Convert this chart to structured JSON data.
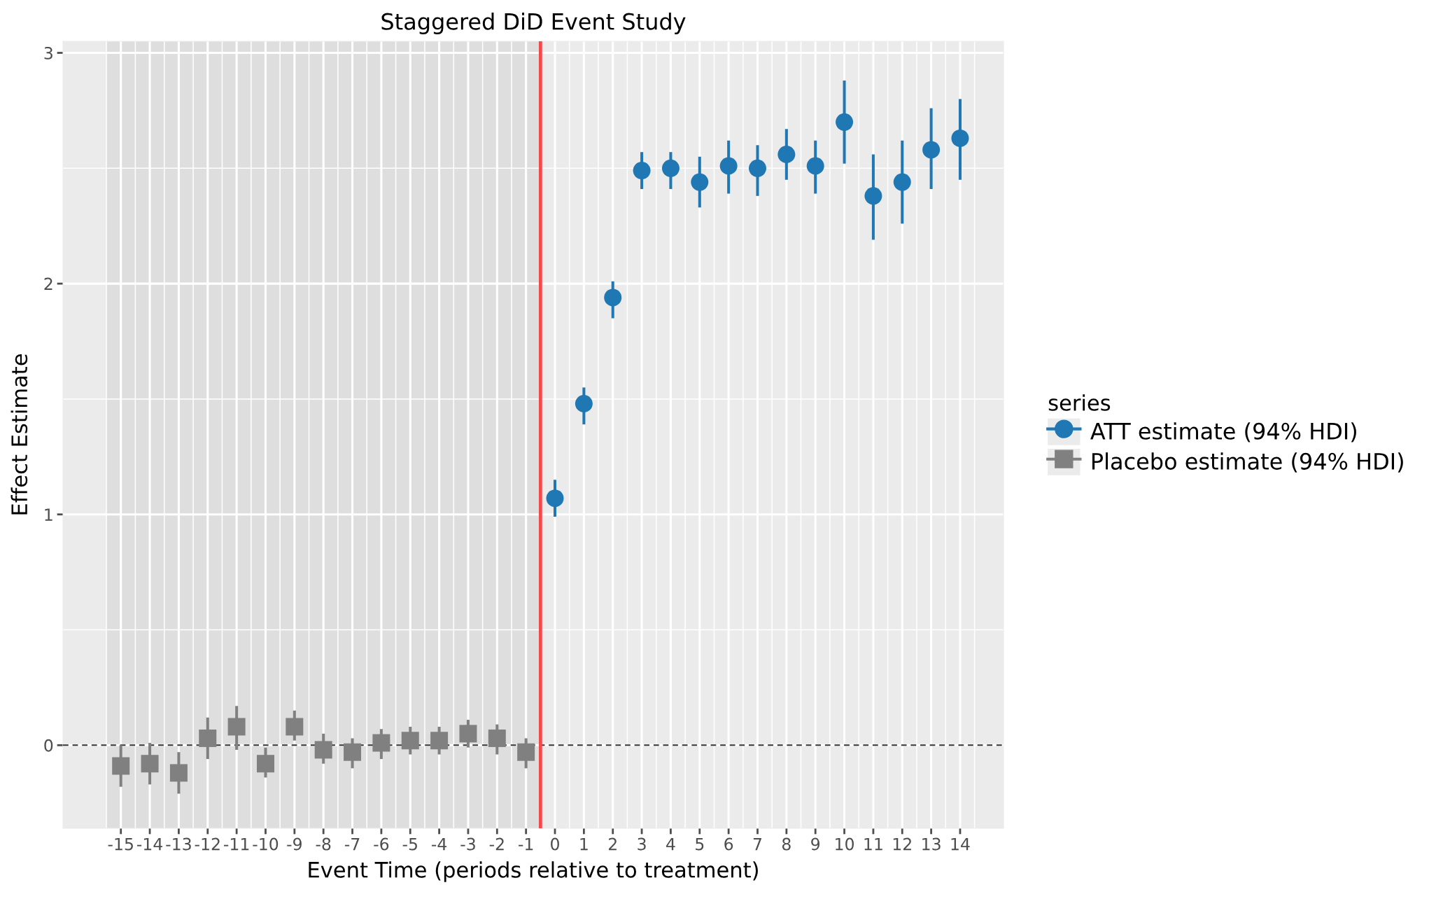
{
  "chart_data": {
    "type": "scatter",
    "title": "Staggered DiD Event Study",
    "xlabel": "Event Time (periods relative to treatment)",
    "ylabel": "Effect Estimate",
    "legend_title": "series",
    "legend": "right",
    "grid": true,
    "xlim": [
      -17,
      15.5
    ],
    "xticks": [
      -15,
      -14,
      -13,
      -12,
      -11,
      -10,
      -9,
      -8,
      -7,
      -6,
      -5,
      -4,
      -3,
      -2,
      -1,
      0,
      1,
      2,
      3,
      4,
      5,
      6,
      7,
      8,
      9,
      10,
      11,
      12,
      13,
      14
    ],
    "ylim": [
      -0.36,
      3.05
    ],
    "yticks": [
      0,
      1,
      2,
      3
    ],
    "series": [
      {
        "name": "ATT estimate (94% HDI)",
        "color": "#1f77b4",
        "marker": "circle",
        "x": [
          0,
          1,
          2,
          3,
          4,
          5,
          6,
          7,
          8,
          9,
          10,
          11,
          12,
          13,
          14
        ],
        "values": [
          1.07,
          1.48,
          1.94,
          2.49,
          2.5,
          2.44,
          2.51,
          2.5,
          2.56,
          2.51,
          2.7,
          2.38,
          2.44,
          2.58,
          2.63
        ],
        "errors": [
          [
            0.99,
            1.15
          ],
          [
            1.39,
            1.55
          ],
          [
            1.85,
            2.01
          ],
          [
            2.41,
            2.57
          ],
          [
            2.41,
            2.57
          ],
          [
            2.33,
            2.55
          ],
          [
            2.39,
            2.62
          ],
          [
            2.38,
            2.6
          ],
          [
            2.45,
            2.67
          ],
          [
            2.39,
            2.62
          ],
          [
            2.52,
            2.88
          ],
          [
            2.19,
            2.56
          ],
          [
            2.26,
            2.62
          ],
          [
            2.41,
            2.76
          ],
          [
            2.45,
            2.8
          ]
        ]
      },
      {
        "name": "Placebo estimate (94% HDI)",
        "color": "#808080",
        "marker": "square",
        "x": [
          -15,
          -14,
          -13,
          -12,
          -11,
          -10,
          -9,
          -8,
          -7,
          -6,
          -5,
          -4,
          -3,
          -2,
          -1
        ],
        "values": [
          -0.09,
          -0.08,
          -0.12,
          0.03,
          0.08,
          -0.08,
          0.08,
          -0.02,
          -0.03,
          0.01,
          0.02,
          0.02,
          0.05,
          0.03,
          -0.03
        ],
        "errors": [
          [
            -0.18,
            0.0
          ],
          [
            -0.17,
            0.01
          ],
          [
            -0.21,
            -0.03
          ],
          [
            -0.06,
            0.12
          ],
          [
            -0.02,
            0.17
          ],
          [
            -0.14,
            -0.01
          ],
          [
            0.02,
            0.15
          ],
          [
            -0.08,
            0.05
          ],
          [
            -0.1,
            0.03
          ],
          [
            -0.06,
            0.07
          ],
          [
            -0.04,
            0.08
          ],
          [
            -0.04,
            0.08
          ],
          [
            -0.01,
            0.11
          ],
          [
            -0.04,
            0.09
          ],
          [
            -0.1,
            0.03
          ]
        ]
      }
    ],
    "ref_lines": [
      {
        "axis": "y",
        "value": 0,
        "color": "#333333",
        "line_style": "dashed"
      },
      {
        "axis": "x",
        "value": -0.5,
        "color": "#f5484b",
        "line_style": "solid"
      }
    ],
    "bands": [
      {
        "axis": "x",
        "from": -15.5,
        "to": -0.5,
        "color": "#dedede"
      }
    ]
  }
}
